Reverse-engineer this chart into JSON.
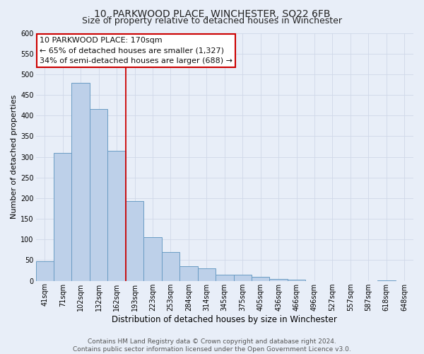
{
  "title": "10, PARKWOOD PLACE, WINCHESTER, SO22 6FB",
  "subtitle": "Size of property relative to detached houses in Winchester",
  "xlabel": "Distribution of detached houses by size in Winchester",
  "ylabel": "Number of detached properties",
  "bin_labels": [
    "41sqm",
    "71sqm",
    "102sqm",
    "132sqm",
    "162sqm",
    "193sqm",
    "223sqm",
    "253sqm",
    "284sqm",
    "314sqm",
    "345sqm",
    "375sqm",
    "405sqm",
    "436sqm",
    "466sqm",
    "496sqm",
    "527sqm",
    "557sqm",
    "587sqm",
    "618sqm",
    "648sqm"
  ],
  "bar_heights": [
    47,
    310,
    480,
    415,
    315,
    193,
    105,
    69,
    35,
    30,
    14,
    15,
    9,
    5,
    2,
    0,
    0,
    0,
    0,
    1,
    0
  ],
  "bar_color": "#bdd0e9",
  "bar_edge_color": "#6a9cc4",
  "annotation_box_text": [
    "10 PARKWOOD PLACE: 170sqm",
    "← 65% of detached houses are smaller (1,327)",
    "34% of semi-detached houses are larger (688) →"
  ],
  "annotation_box_color": "white",
  "annotation_box_edge_color": "#cc0000",
  "vline_color": "#cc0000",
  "vline_x_index": 4.5,
  "ylim": [
    0,
    600
  ],
  "yticks": [
    0,
    50,
    100,
    150,
    200,
    250,
    300,
    350,
    400,
    450,
    500,
    550,
    600
  ],
  "grid_color": "#d0d8e8",
  "background_color": "#e8eef8",
  "plot_bg_color": "#e8eef8",
  "footer_text": "Contains HM Land Registry data © Crown copyright and database right 2024.\nContains public sector information licensed under the Open Government Licence v3.0.",
  "title_fontsize": 10,
  "subtitle_fontsize": 9,
  "xlabel_fontsize": 8.5,
  "ylabel_fontsize": 8,
  "tick_fontsize": 7,
  "annotation_fontsize": 8,
  "footer_fontsize": 6.5
}
